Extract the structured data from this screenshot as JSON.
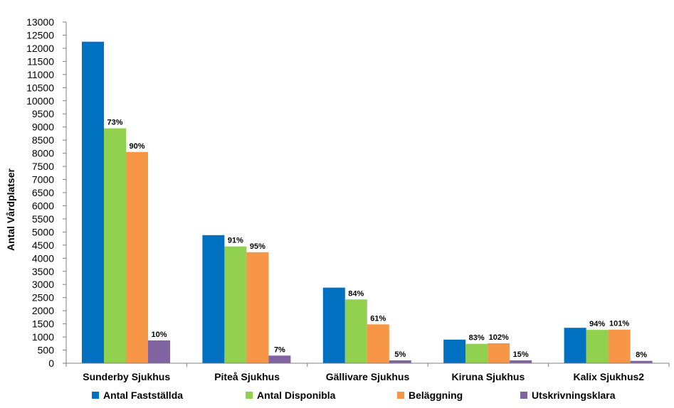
{
  "chart_data": {
    "type": "bar",
    "ylabel": "Antal Vårdplatser",
    "ylim": [
      0,
      13000
    ],
    "ytick_step": 500,
    "grid": false,
    "legend_position": "bottom",
    "categories": [
      "Sunderby Sjukhus",
      "Piteå Sjukhus",
      "Gällivare Sjukhus",
      "Kiruna Sjukhus",
      "Kalix Sjukhus2"
    ],
    "series": [
      {
        "name": "Antal Fastställda",
        "color": "#0070C0",
        "values": [
          12250,
          4880,
          2880,
          900,
          1350
        ],
        "labels": [
          "",
          "",
          "",
          "",
          ""
        ]
      },
      {
        "name": "Antal Disponibla",
        "color": "#92D050",
        "values": [
          8950,
          4450,
          2430,
          740,
          1270
        ],
        "labels": [
          "73%",
          "91%",
          "84%",
          "83%",
          "94%"
        ]
      },
      {
        "name": "Beläggning",
        "color": "#F79646",
        "values": [
          8050,
          4230,
          1480,
          760,
          1280
        ],
        "labels": [
          "90%",
          "95%",
          "61%",
          "102%",
          "101%"
        ]
      },
      {
        "name": "Utskrivningsklara",
        "color": "#8064A2",
        "values": [
          870,
          290,
          110,
          110,
          90
        ],
        "labels": [
          "10%",
          "7%",
          "5%",
          "15%",
          "8%"
        ]
      }
    ]
  }
}
